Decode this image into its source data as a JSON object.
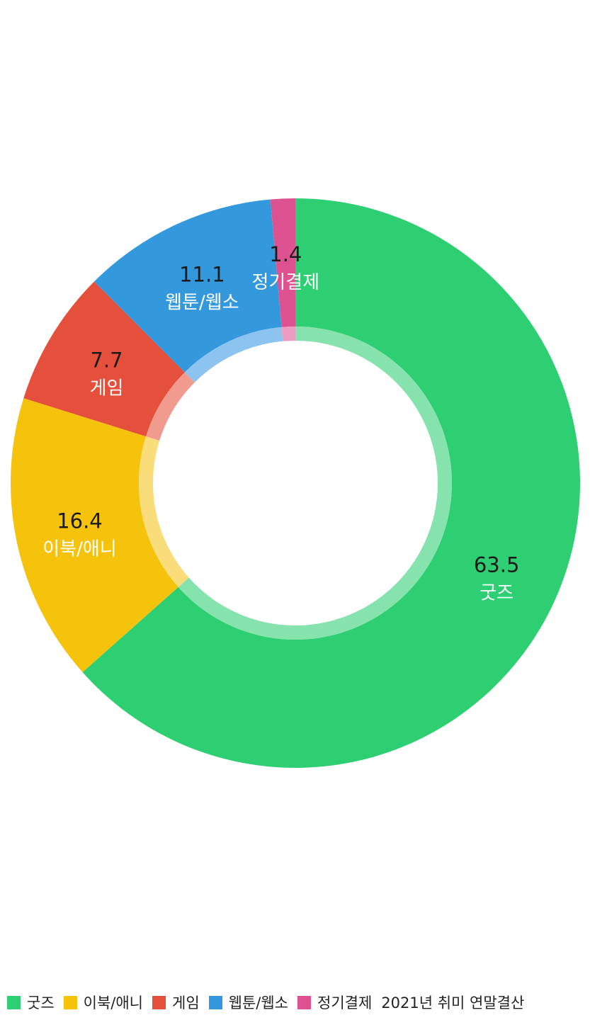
{
  "chart_data": {
    "type": "pie",
    "variant": "donut",
    "title": "",
    "caption": "2021년 취미 연말결산",
    "categories": [
      "굿즈",
      "이북/애니",
      "게임",
      "웹툰/웹소",
      "정기결제"
    ],
    "values": [
      63.5,
      16.4,
      7.7,
      11.1,
      1.4
    ],
    "value_labels": [
      "63.5",
      "16.4",
      "7.7",
      "11.1",
      "1.4"
    ],
    "colors": [
      "#2ecf72",
      "#f5c30c",
      "#e5503c",
      "#3498dc",
      "#df5292"
    ],
    "inner_ring_colors": [
      "#86e3ad",
      "#f9dd7a",
      "#f19a8e",
      "#8cc3ef",
      "#ef9cc2"
    ],
    "start_angle_deg": 0,
    "direction": "clockwise",
    "legend_position": "bottom-left"
  }
}
